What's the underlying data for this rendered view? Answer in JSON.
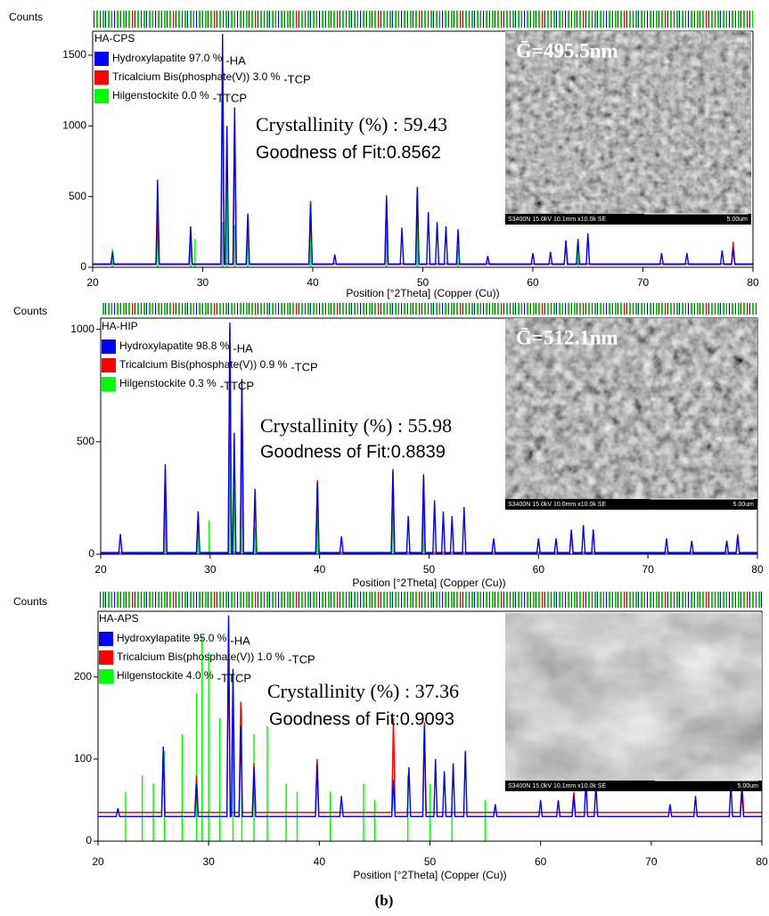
{
  "chart_data": [
    {
      "type": "line",
      "title": "HA-CPS",
      "y_label": "Counts",
      "x_label": "Position [°2Theta] (Copper (Cu))",
      "xlim": [
        20,
        80
      ],
      "xticks": [
        20,
        30,
        40,
        50,
        60,
        70,
        80
      ],
      "ylim": [
        0,
        1670
      ],
      "yticks": [
        0,
        500,
        1000,
        1500
      ],
      "crystallinity": "Crystallinity (%) : 59.43",
      "fit": "Goodness of Fit:0.8562",
      "grain": "Ḡ=495.5nm",
      "image_caption": "S3400N 15.0kV 10.1mm x10.0k SE",
      "scale_label": "5.00um",
      "series": [
        {
          "name": "Hydroxylapatite 97.0 %",
          "tag": "-HA",
          "color": "#0000ff",
          "x": [
            20,
            21.65,
            21.8,
            21.95,
            25.75,
            25.9,
            26.05,
            28.75,
            28.9,
            29.05,
            31.65,
            31.8,
            31.95,
            32.05,
            32.2,
            32.35,
            32.75,
            32.9,
            33.05,
            33.95,
            34.1,
            34.25,
            39.65,
            39.8,
            39.95,
            41.85,
            42,
            42.15,
            46.55,
            46.7,
            46.85,
            47.95,
            48.1,
            48.25,
            49.35,
            49.5,
            49.65,
            50.35,
            50.5,
            50.65,
            51.15,
            51.3,
            51.45,
            51.95,
            52.1,
            52.25,
            53.05,
            53.2,
            53.35,
            55.75,
            55.9,
            56.05,
            59.85,
            60,
            60.15,
            61.45,
            61.6,
            61.75,
            62.85,
            63,
            63.15,
            63.95,
            64.1,
            64.25,
            64.85,
            65,
            65.15,
            71.55,
            71.7,
            71.85,
            73.85,
            74,
            74.15,
            77.05,
            77.2,
            77.35,
            78.05,
            78.2,
            78.35,
            80
          ],
          "values": [
            20,
            20,
            110,
            20,
            20,
            620,
            20,
            20,
            290,
            20,
            20,
            1650,
            20,
            20,
            1000,
            20,
            20,
            1130,
            20,
            20,
            380,
            20,
            20,
            450,
            20,
            20,
            90,
            20,
            20,
            500,
            20,
            20,
            280,
            20,
            20,
            560,
            20,
            20,
            390,
            20,
            20,
            320,
            20,
            20,
            290,
            20,
            20,
            270,
            20,
            20,
            80,
            20,
            20,
            100,
            20,
            20,
            110,
            20,
            20,
            190,
            20,
            20,
            200,
            20,
            20,
            240,
            20,
            20,
            100,
            20,
            20,
            100,
            20,
            20,
            120,
            20,
            20,
            130,
            20,
            20
          ]
        },
        {
          "name": "Tricalcium Bis(phosphate(V)) 3.0 %",
          "tag": "-TCP",
          "color": "#ff0000",
          "x": [
            20,
            25.75,
            25.9,
            26.05,
            28.75,
            28.9,
            29.05,
            31.65,
            31.8,
            31.95,
            32.75,
            32.9,
            33.05,
            33.95,
            34.1,
            34.25,
            39.65,
            39.8,
            39.95,
            46.55,
            46.7,
            46.85,
            49.35,
            49.5,
            49.65,
            62.85,
            63,
            63.15,
            78.05,
            78.2,
            78.35,
            80
          ],
          "values": [
            25,
            25,
            350,
            25,
            25,
            250,
            25,
            25,
            1450,
            25,
            25,
            1100,
            25,
            25,
            360,
            25,
            25,
            470,
            25,
            25,
            510,
            25,
            25,
            570,
            25,
            25,
            180,
            25,
            25,
            180,
            25,
            25
          ]
        },
        {
          "name": "Hilgenstockite 0.0 %",
          "tag": "-TTCP",
          "color": "#00ff00",
          "style": "sticks",
          "x": [
            21.8,
            25.9,
            28.9,
            29.3,
            31.8,
            32.2,
            32.9,
            34.1,
            39.8,
            46.7,
            49.5,
            53.2,
            64.1
          ],
          "values": [
            130,
            430,
            180,
            200,
            320,
            700,
            300,
            200,
            300,
            420,
            420,
            150,
            180
          ]
        }
      ]
    },
    {
      "type": "line",
      "title": "HA-HIP",
      "y_label": "Counts",
      "x_label": "Position [°2Theta] (Copper (Cu))",
      "xlim": [
        20,
        80
      ],
      "xticks": [
        20,
        30,
        40,
        50,
        60,
        70,
        80
      ],
      "ylim": [
        0,
        1050
      ],
      "yticks": [
        0,
        500,
        1000
      ],
      "crystallinity": "Crystallinity (%) : 55.98",
      "fit": "Goodness of Fit:0.8839",
      "grain": "Ḡ=512.1nm",
      "image_caption": "S3400N 15.0kV 10.0mm x10.0k SE",
      "scale_label": "5.00um",
      "series": [
        {
          "name": "Hydroxylapatite 98.8 %",
          "tag": "-HA",
          "color": "#0000ff",
          "x": [
            20,
            21.65,
            21.8,
            21.95,
            25.75,
            25.9,
            26.05,
            28.75,
            28.9,
            29.05,
            31.65,
            31.8,
            31.95,
            32.05,
            32.2,
            32.35,
            32.75,
            32.9,
            33.05,
            33.95,
            34.1,
            34.25,
            39.65,
            39.8,
            39.95,
            41.85,
            42,
            42.15,
            46.55,
            46.7,
            46.85,
            47.95,
            48.1,
            48.25,
            49.35,
            49.5,
            49.65,
            50.35,
            50.5,
            50.65,
            51.15,
            51.3,
            51.45,
            51.95,
            52.1,
            52.25,
            53.05,
            53.2,
            53.35,
            55.75,
            55.9,
            56.05,
            59.85,
            60,
            60.15,
            61.45,
            61.6,
            61.75,
            62.85,
            63,
            63.15,
            63.95,
            64.1,
            64.25,
            64.85,
            65,
            65.15,
            71.55,
            71.7,
            71.85,
            73.85,
            74,
            74.15,
            77.05,
            77.2,
            77.35,
            78.05,
            78.2,
            78.35,
            80
          ],
          "values": [
            5,
            5,
            90,
            5,
            5,
            400,
            5,
            5,
            190,
            5,
            5,
            1030,
            5,
            5,
            540,
            5,
            5,
            780,
            5,
            5,
            290,
            5,
            5,
            320,
            5,
            5,
            80,
            5,
            5,
            370,
            5,
            5,
            170,
            5,
            5,
            355,
            5,
            5,
            240,
            5,
            5,
            190,
            5,
            5,
            170,
            5,
            5,
            210,
            5,
            5,
            70,
            5,
            5,
            70,
            5,
            5,
            70,
            5,
            5,
            110,
            5,
            5,
            130,
            5,
            5,
            110,
            5,
            5,
            70,
            5,
            5,
            60,
            5,
            5,
            60,
            5,
            5,
            80,
            5,
            5
          ]
        },
        {
          "name": "Tricalcium Bis(phosphate(V)) 0.9 %",
          "tag": "-TCP",
          "color": "#ff0000",
          "x": [
            20,
            25.75,
            25.9,
            26.05,
            28.75,
            28.9,
            29.05,
            31.65,
            31.8,
            31.95,
            32.75,
            32.9,
            33.05,
            33.95,
            34.1,
            34.25,
            39.65,
            39.8,
            39.95,
            46.55,
            46.7,
            46.85,
            49.35,
            49.5,
            49.65,
            62.85,
            63,
            63.15,
            78.05,
            78.2,
            78.35,
            80
          ],
          "values": [
            8,
            8,
            380,
            8,
            8,
            170,
            8,
            8,
            1000,
            8,
            8,
            770,
            8,
            8,
            270,
            8,
            8,
            330,
            8,
            8,
            380,
            8,
            8,
            350,
            8,
            8,
            100,
            8,
            8,
            90,
            8,
            8
          ]
        },
        {
          "name": "Hilgenstockite 0.3 %",
          "tag": "-TTCP",
          "color": "#00ff00",
          "style": "sticks",
          "x": [
            25.9,
            28.9,
            29.9,
            31.8,
            32.2,
            32.9,
            34.1,
            39.8,
            46.7,
            49.5
          ],
          "values": [
            240,
            190,
            150,
            780,
            300,
            620,
            120,
            170,
            260,
            200
          ]
        }
      ]
    },
    {
      "type": "line",
      "title": "HA-APS",
      "y_label": "Counts",
      "x_label": "Position [°2Theta] (Copper (Cu))",
      "xlim": [
        20,
        80
      ],
      "xticks": [
        20,
        30,
        40,
        50,
        60,
        70,
        80
      ],
      "ylim": [
        0,
        280
      ],
      "yticks": [
        0,
        100,
        200
      ],
      "crystallinity": "Crystallinity (%) : 37.36",
      "fit": "Goodness of Fit:0.9093",
      "image_caption": "S3400N 15.0kV 10.1mm x10.0k SE",
      "scale_label": "5.00um",
      "series": [
        {
          "name": "Hydroxylapatite 95.0 %",
          "tag": "-HA",
          "color": "#0000ff",
          "x": [
            20,
            21.65,
            21.8,
            21.95,
            25.75,
            25.9,
            26.05,
            28.75,
            28.9,
            29.05,
            31.65,
            31.8,
            31.95,
            32.05,
            32.2,
            32.35,
            32.75,
            32.9,
            33.05,
            33.95,
            34.1,
            34.25,
            39.65,
            39.8,
            39.95,
            41.85,
            42,
            42.15,
            46.55,
            46.7,
            46.85,
            47.95,
            48.1,
            48.25,
            49.35,
            49.5,
            49.65,
            50.35,
            50.5,
            50.65,
            51.15,
            51.3,
            51.45,
            51.95,
            52.1,
            52.25,
            53.05,
            53.2,
            53.35,
            55.75,
            55.9,
            56.05,
            59.85,
            60,
            60.15,
            61.45,
            61.6,
            61.75,
            62.85,
            63,
            63.15,
            63.95,
            64.1,
            64.25,
            64.85,
            65,
            65.15,
            71.55,
            71.7,
            71.85,
            73.85,
            74,
            74.15,
            77.05,
            77.2,
            77.35,
            78.05,
            78.2,
            78.35,
            80
          ],
          "values": [
            30,
            30,
            40,
            30,
            30,
            115,
            30,
            30,
            70,
            30,
            30,
            275,
            30,
            30,
            210,
            30,
            30,
            140,
            30,
            30,
            90,
            30,
            30,
            95,
            30,
            30,
            55,
            30,
            30,
            75,
            30,
            30,
            90,
            30,
            30,
            140,
            30,
            30,
            100,
            30,
            30,
            85,
            30,
            30,
            95,
            30,
            30,
            110,
            30,
            30,
            45,
            30,
            30,
            50,
            30,
            30,
            50,
            30,
            30,
            55,
            30,
            30,
            75,
            30,
            30,
            70,
            30,
            30,
            45,
            30,
            30,
            55,
            30,
            30,
            70,
            30,
            30,
            60,
            30,
            30
          ]
        },
        {
          "name": "Tricalcium Bis(phosphate(V)) 1.0 %",
          "tag": "-TCP",
          "color": "#ff0000",
          "x": [
            20,
            25.75,
            25.9,
            26.05,
            28.75,
            28.9,
            29.05,
            31.65,
            31.8,
            31.95,
            32.75,
            32.9,
            33.05,
            33.95,
            34.1,
            34.25,
            39.65,
            39.8,
            39.95,
            46.55,
            46.7,
            46.85,
            49.35,
            49.5,
            49.65,
            62.85,
            63,
            63.15,
            78.05,
            78.2,
            78.35,
            80
          ],
          "values": [
            35,
            35,
            110,
            35,
            35,
            80,
            35,
            35,
            260,
            35,
            35,
            170,
            35,
            35,
            95,
            35,
            35,
            100,
            35,
            35,
            150,
            35,
            35,
            145,
            35,
            35,
            60,
            35,
            35,
            75,
            35,
            35
          ]
        },
        {
          "name": "Hilgenstockite 4.0 %",
          "tag": "-TTCP",
          "color": "#00ff00",
          "style": "sticks",
          "x": [
            22.5,
            24,
            25,
            26,
            27.6,
            28.9,
            29.4,
            30,
            31,
            32.2,
            33,
            34.1,
            35.3,
            37,
            38,
            41,
            44,
            45,
            48,
            50,
            52,
            55
          ],
          "values": [
            60,
            80,
            70,
            110,
            130,
            180,
            250,
            230,
            150,
            200,
            160,
            130,
            140,
            70,
            60,
            60,
            70,
            50,
            80,
            70,
            60,
            50
          ]
        }
      ]
    }
  ],
  "caption": "(b)"
}
